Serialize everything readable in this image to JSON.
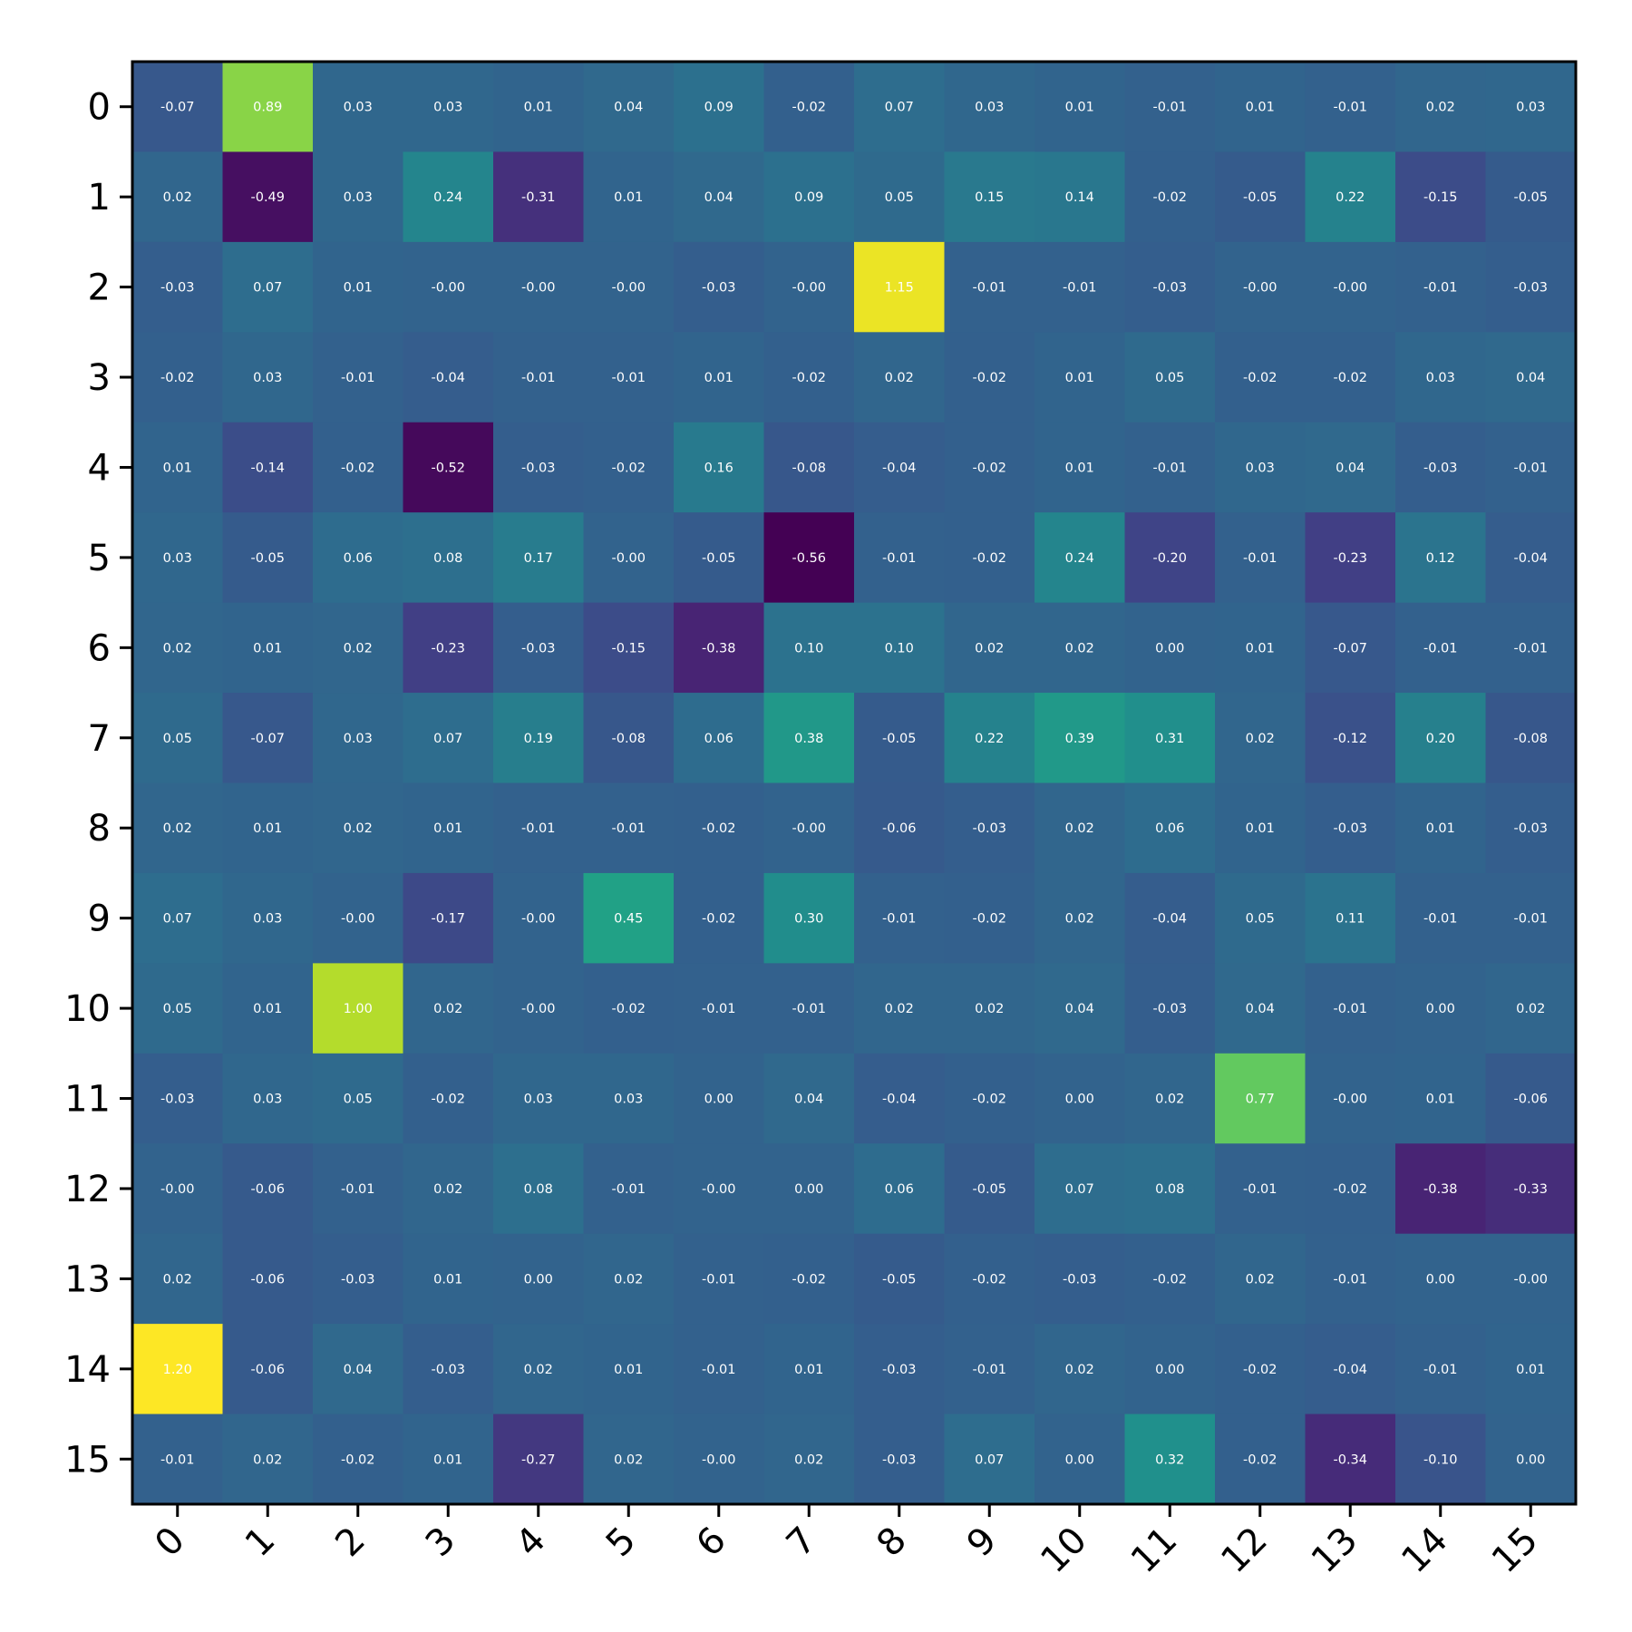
{
  "chart_data": {
    "type": "heatmap",
    "title": "",
    "xlabel": "",
    "ylabel": "",
    "x_categories": [
      "0",
      "1",
      "2",
      "3",
      "4",
      "5",
      "6",
      "7",
      "8",
      "9",
      "10",
      "11",
      "12",
      "13",
      "14",
      "15"
    ],
    "y_categories": [
      "0",
      "1",
      "2",
      "3",
      "4",
      "5",
      "6",
      "7",
      "8",
      "9",
      "10",
      "11",
      "12",
      "13",
      "14",
      "15"
    ],
    "colormap": "viridis",
    "color_range": [
      -0.56,
      1.2
    ],
    "x_tick_rotation_deg": 45,
    "annotation_format": "2 decimals",
    "values": [
      [
        -0.07,
        0.89,
        0.03,
        0.03,
        0.01,
        0.04,
        0.09,
        -0.02,
        0.07,
        0.03,
        0.01,
        -0.01,
        0.01,
        -0.01,
        0.02,
        0.03
      ],
      [
        0.02,
        -0.49,
        0.03,
        0.24,
        -0.31,
        0.01,
        0.04,
        0.09,
        0.05,
        0.15,
        0.14,
        -0.02,
        -0.05,
        0.22,
        -0.15,
        -0.05
      ],
      [
        -0.03,
        0.07,
        0.01,
        -0.0,
        -0.0,
        -0.0,
        -0.03,
        -0.0,
        1.15,
        -0.01,
        -0.01,
        -0.03,
        -0.0,
        -0.0,
        -0.01,
        -0.03
      ],
      [
        -0.02,
        0.03,
        -0.01,
        -0.04,
        -0.01,
        -0.01,
        0.01,
        -0.02,
        0.02,
        -0.02,
        0.01,
        0.05,
        -0.02,
        -0.02,
        0.03,
        0.04
      ],
      [
        0.01,
        -0.14,
        -0.02,
        -0.52,
        -0.03,
        -0.02,
        0.16,
        -0.08,
        -0.04,
        -0.02,
        0.01,
        -0.01,
        0.03,
        0.04,
        -0.03,
        -0.01
      ],
      [
        0.03,
        -0.05,
        0.06,
        0.08,
        0.17,
        -0.0,
        -0.05,
        -0.56,
        -0.01,
        -0.02,
        0.24,
        -0.2,
        -0.01,
        -0.23,
        0.12,
        -0.04
      ],
      [
        0.02,
        0.01,
        0.02,
        -0.23,
        -0.03,
        -0.15,
        -0.38,
        0.1,
        0.1,
        0.02,
        0.02,
        0.0,
        0.01,
        -0.07,
        -0.01,
        -0.01
      ],
      [
        0.05,
        -0.07,
        0.03,
        0.07,
        0.19,
        -0.08,
        0.06,
        0.38,
        -0.05,
        0.22,
        0.39,
        0.31,
        0.02,
        -0.12,
        0.2,
        -0.08
      ],
      [
        0.02,
        0.01,
        0.02,
        0.01,
        -0.01,
        -0.01,
        -0.02,
        -0.0,
        -0.06,
        -0.03,
        0.02,
        0.06,
        0.01,
        -0.03,
        0.01,
        -0.03
      ],
      [
        0.07,
        0.03,
        -0.0,
        -0.17,
        -0.0,
        0.45,
        -0.02,
        0.3,
        -0.01,
        -0.02,
        0.02,
        -0.04,
        0.05,
        0.11,
        -0.01,
        -0.01
      ],
      [
        0.05,
        0.01,
        1.0,
        0.02,
        -0.0,
        -0.02,
        -0.01,
        -0.01,
        0.02,
        0.02,
        0.04,
        -0.03,
        0.04,
        -0.01,
        0.0,
        0.02
      ],
      [
        -0.03,
        0.03,
        0.05,
        -0.02,
        0.03,
        0.03,
        0.0,
        0.04,
        -0.04,
        -0.02,
        0.0,
        0.02,
        0.77,
        -0.0,
        0.01,
        -0.06
      ],
      [
        -0.0,
        -0.06,
        -0.01,
        0.02,
        0.08,
        -0.01,
        -0.0,
        0.0,
        0.06,
        -0.05,
        0.07,
        0.08,
        -0.01,
        -0.02,
        -0.38,
        -0.33
      ],
      [
        0.02,
        -0.06,
        -0.03,
        0.01,
        0.0,
        0.02,
        -0.01,
        -0.02,
        -0.05,
        -0.02,
        -0.03,
        -0.02,
        0.02,
        -0.01,
        0.0,
        -0.0
      ],
      [
        1.2,
        -0.06,
        0.04,
        -0.03,
        0.02,
        0.01,
        -0.01,
        0.01,
        -0.03,
        -0.01,
        0.02,
        0.0,
        -0.02,
        -0.04,
        -0.01,
        0.01
      ],
      [
        -0.01,
        0.02,
        -0.02,
        0.01,
        -0.27,
        0.02,
        -0.0,
        0.02,
        -0.03,
        0.07,
        0.0,
        0.32,
        -0.02,
        -0.34,
        -0.1,
        0.0
      ]
    ]
  }
}
